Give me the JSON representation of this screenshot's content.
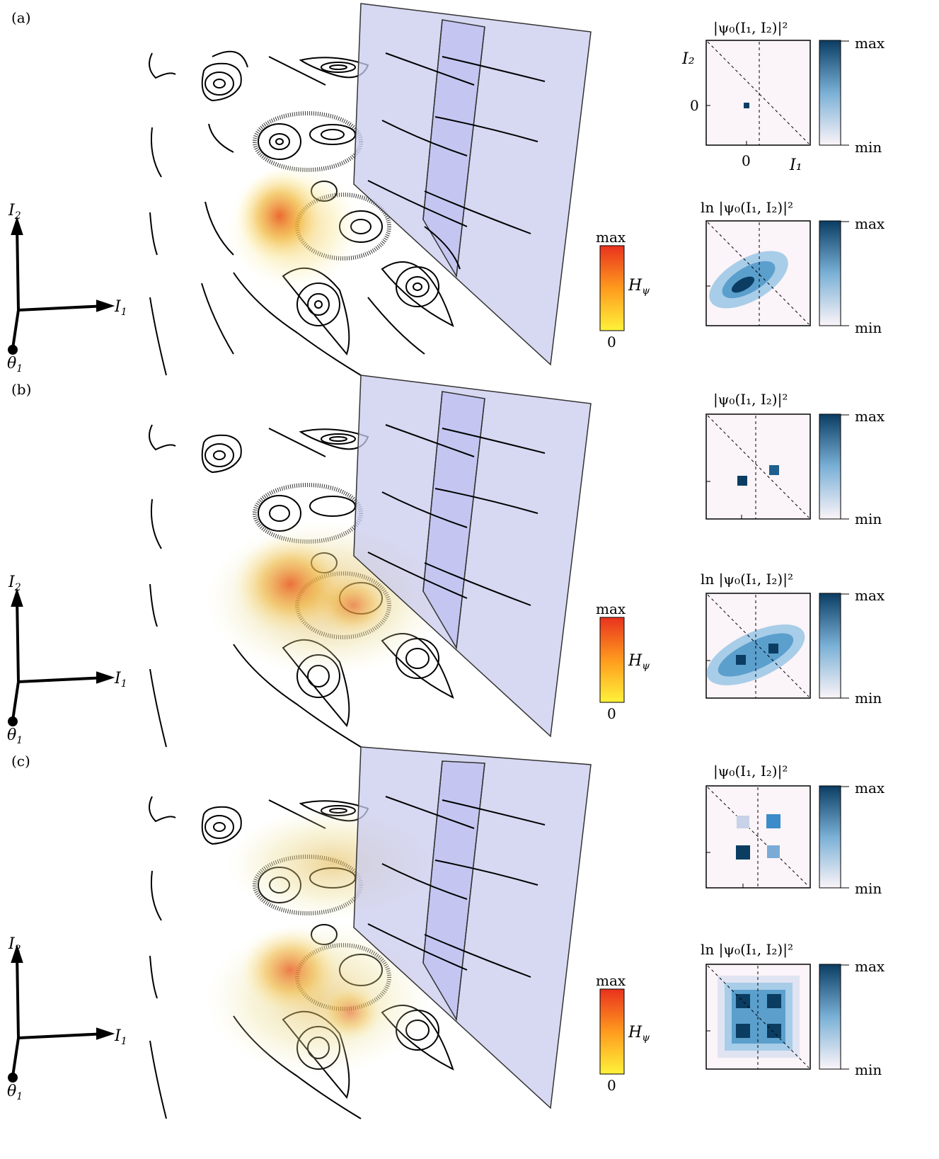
{
  "panels": [
    {
      "label": "(a)",
      "axes": {
        "i2": "I",
        "i2_sub": "2",
        "i1": "I",
        "i1_sub": "1",
        "theta": "θ",
        "theta_sub": "1"
      },
      "hpsi": {
        "max": "max",
        "zero": "0",
        "name": "H",
        "name_sub": "ψ"
      },
      "heatmap_top": {
        "title": "|ψ₀(I₁, I₂)|²",
        "ylabel": "I₂",
        "xlabel": "I₁",
        "y0": "0",
        "x0": "0",
        "cb_max": "max",
        "cb_min": "min"
      },
      "heatmap_bottom": {
        "title": "ln |ψ₀(I₁, I₂)|²",
        "cb_max": "max",
        "cb_min": "min"
      }
    },
    {
      "label": "(b)",
      "axes": {
        "i2": "I",
        "i2_sub": "2",
        "i1": "I",
        "i1_sub": "1",
        "theta": "θ",
        "theta_sub": "1"
      },
      "hpsi": {
        "max": "max",
        "zero": "0",
        "name": "H",
        "name_sub": "ψ"
      },
      "heatmap_top": {
        "title": "|ψ₀(I₁, I₂)|²",
        "cb_max": "max",
        "cb_min": "min"
      },
      "heatmap_bottom": {
        "title": "ln |ψ₀(I₁, I₂)|²",
        "cb_max": "max",
        "cb_min": "min"
      }
    },
    {
      "label": "(c)",
      "axes": {
        "i2": "I",
        "i2_sub": "2",
        "i1": "I",
        "i1_sub": "1",
        "theta": "θ",
        "theta_sub": "1"
      },
      "hpsi": {
        "max": "max",
        "zero": "0",
        "name": "H",
        "name_sub": "ψ"
      },
      "heatmap_top": {
        "title": "|ψ₀(I₁, I₂)|²",
        "cb_max": "max",
        "cb_min": "min"
      },
      "heatmap_bottom": {
        "title": "ln |ψ₀(I₁, I₂)|²",
        "cb_max": "max",
        "cb_min": "min"
      }
    }
  ],
  "colors": {
    "husimi_low": "#fff23a",
    "husimi_high": "#e8321e",
    "wall": "#c9cbee",
    "blue_max": "#0b3d63",
    "blue_min": "#fbf4f8"
  }
}
